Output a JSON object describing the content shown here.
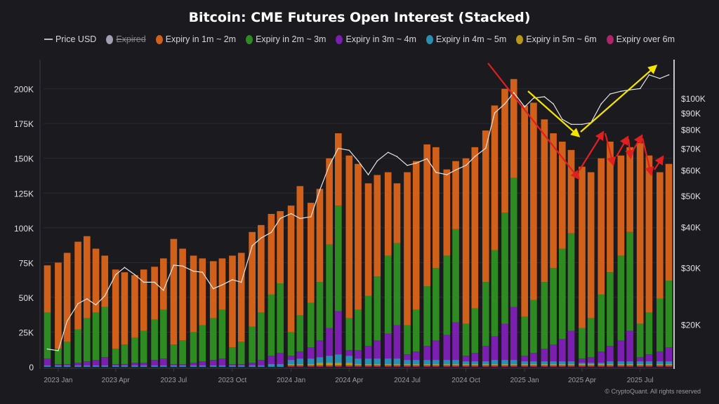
{
  "chart_data": {
    "type": "bar",
    "stacked": true,
    "title": "Bitcoin: CME Futures Open Interest (Stacked)",
    "legend_position": "top",
    "grid": true,
    "x": [
      "2022-12-15",
      "2023-01-01",
      "2023-01-15",
      "2023-02-01",
      "2023-02-15",
      "2023-03-01",
      "2023-03-15",
      "2023-04-01",
      "2023-04-15",
      "2023-05-01",
      "2023-05-15",
      "2023-06-01",
      "2023-06-15",
      "2023-07-01",
      "2023-07-15",
      "2023-08-01",
      "2023-08-15",
      "2023-09-01",
      "2023-09-15",
      "2023-10-01",
      "2023-10-15",
      "2023-11-01",
      "2023-11-15",
      "2023-12-01",
      "2023-12-15",
      "2024-01-01",
      "2024-01-15",
      "2024-02-01",
      "2024-02-15",
      "2024-03-01",
      "2024-03-15",
      "2024-04-01",
      "2024-04-15",
      "2024-05-01",
      "2024-05-15",
      "2024-06-01",
      "2024-06-15",
      "2024-07-01",
      "2024-07-15",
      "2024-08-01",
      "2024-08-15",
      "2024-09-01",
      "2024-09-15",
      "2024-10-01",
      "2024-10-15",
      "2024-11-01",
      "2024-11-15",
      "2024-12-01",
      "2024-12-15",
      "2025-01-01",
      "2025-01-15",
      "2025-02-01",
      "2025-02-15",
      "2025-03-01",
      "2025-03-15",
      "2025-04-01",
      "2025-04-15",
      "2025-05-01",
      "2025-05-15",
      "2025-06-01",
      "2025-06-15",
      "2025-07-01",
      "2025-07-15",
      "2025-08-01",
      "2025-08-15"
    ],
    "x_ticks": [
      "2023 Jan",
      "2023 Apr",
      "2023 Jul",
      "2023 Oct",
      "2024 Jan",
      "2024 Apr",
      "2024 Jul",
      "2024 Oct",
      "2025 Jan",
      "2025 Apr",
      "2025 Jul"
    ],
    "x_tick_dates": [
      "2023-01-01",
      "2023-04-01",
      "2023-07-01",
      "2023-10-01",
      "2024-01-01",
      "2024-04-01",
      "2024-07-01",
      "2024-10-01",
      "2025-01-01",
      "2025-04-01",
      "2025-07-01"
    ],
    "x_range": [
      "2022-12-09",
      "2025-08-21"
    ],
    "y_left": {
      "unit": "K",
      "ylim": [
        0,
        221
      ],
      "ticks": [
        0,
        25,
        50,
        75,
        100,
        125,
        150,
        175,
        200
      ],
      "tick_labels": [
        "0",
        "25K",
        "50K",
        "75K",
        "100K",
        "125K",
        "150K",
        "175K",
        "200K"
      ]
    },
    "y_right": {
      "scale": "log",
      "ylim": [
        14.8,
        131.5
      ],
      "ticks": [
        20,
        30,
        40,
        50,
        60,
        70,
        80,
        90,
        100
      ],
      "tick_labels": [
        "$20K",
        "$30K",
        "$40K",
        "$50K",
        "$60K",
        "$70K",
        "$80K",
        "$90K",
        "$100K"
      ]
    },
    "series": [
      {
        "name": "Expiry over 6m",
        "color": "#b0246a",
        "values": [
          0,
          0,
          0,
          0,
          0,
          0,
          0,
          0,
          0,
          0,
          0,
          0,
          0,
          0,
          0,
          0,
          0,
          0,
          0,
          0,
          0,
          0,
          0,
          0,
          0,
          1,
          1,
          1,
          1,
          1,
          1,
          1,
          1,
          1,
          1,
          1,
          1,
          1,
          1,
          1,
          1,
          1,
          1,
          1,
          1,
          1,
          1,
          1,
          1,
          1,
          1,
          1,
          1,
          1,
          1,
          1,
          1,
          1,
          1,
          1,
          1,
          1,
          1,
          1,
          1
        ]
      },
      {
        "name": "Expiry in 5m ~ 6m",
        "color": "#b8961a",
        "values": [
          0,
          0,
          0,
          0,
          0,
          0,
          0,
          0,
          0,
          0,
          0,
          0,
          0,
          0,
          0,
          0,
          0,
          0,
          0,
          0,
          0,
          0,
          0,
          0,
          0,
          1,
          1,
          1,
          2,
          2,
          2,
          2,
          1,
          1,
          1,
          1,
          1,
          1,
          1,
          1,
          1,
          1,
          1,
          1,
          1,
          1,
          1,
          1,
          1,
          1,
          1,
          1,
          1,
          1,
          1,
          1,
          1,
          1,
          1,
          1,
          1,
          1,
          1,
          1,
          1
        ]
      },
      {
        "name": "Expiry in 4m ~ 5m",
        "color": "#2a8fb0",
        "values": [
          1,
          1,
          1,
          1,
          1,
          1,
          1,
          1,
          1,
          1,
          1,
          1,
          1,
          1,
          1,
          1,
          1,
          1,
          1,
          1,
          1,
          1,
          1,
          2,
          2,
          3,
          4,
          4,
          4,
          5,
          6,
          5,
          4,
          4,
          4,
          4,
          4,
          3,
          3,
          3,
          3,
          3,
          3,
          2,
          2,
          2,
          3,
          3,
          3,
          2,
          2,
          2,
          2,
          2,
          2,
          1,
          1,
          1,
          2,
          2,
          2,
          2,
          2,
          2,
          2
        ]
      },
      {
        "name": "Expiry in 3m ~ 4m",
        "color": "#7a1fb0",
        "values": [
          5,
          1,
          1,
          2,
          3,
          4,
          6,
          1,
          1,
          2,
          2,
          4,
          5,
          1,
          1,
          2,
          3,
          4,
          5,
          1,
          1,
          2,
          4,
          6,
          8,
          3,
          5,
          8,
          12,
          20,
          31,
          4,
          6,
          9,
          13,
          18,
          24,
          4,
          6,
          10,
          14,
          18,
          27,
          4,
          6,
          11,
          17,
          26,
          38,
          4,
          6,
          9,
          12,
          16,
          22,
          3,
          4,
          8,
          11,
          15,
          22,
          3,
          5,
          7,
          10
        ]
      },
      {
        "name": "Expiry in 2m ~ 3m",
        "color": "#2e8b22",
        "values": [
          33,
          11,
          16,
          24,
          31,
          34,
          36,
          11,
          14,
          18,
          23,
          29,
          35,
          14,
          17,
          22,
          26,
          30,
          35,
          12,
          16,
          26,
          34,
          44,
          50,
          17,
          26,
          32,
          42,
          60,
          76,
          23,
          29,
          36,
          46,
          56,
          59,
          21,
          30,
          43,
          52,
          57,
          67,
          23,
          32,
          46,
          62,
          80,
          93,
          28,
          38,
          48,
          55,
          65,
          70,
          22,
          28,
          41,
          53,
          61,
          71,
          24,
          30,
          38,
          48
        ]
      },
      {
        "name": "Expiry in 1m ~ 2m",
        "color": "#d0601a",
        "values": [
          34,
          62,
          64,
          63,
          59,
          46,
          37,
          57,
          52,
          45,
          44,
          38,
          37,
          76,
          66,
          55,
          48,
          41,
          37,
          66,
          64,
          68,
          63,
          58,
          52,
          91,
          93,
          72,
          67,
          62,
          52,
          117,
          105,
          81,
          73,
          60,
          43,
          110,
          107,
          102,
          87,
          62,
          49,
          119,
          116,
          109,
          104,
          89,
          71,
          152,
          142,
          117,
          97,
          77,
          60,
          116,
          105,
          98,
          94,
          72,
          61,
          130,
          113,
          91,
          84
        ]
      }
    ],
    "line_series": {
      "name": "Price USD",
      "color": "#e6e6e6",
      "axis": "right",
      "unit": "K USD",
      "values": [
        16.8,
        16.6,
        20.5,
        23.2,
        24.0,
        23.0,
        24.5,
        28.5,
        30.0,
        28.5,
        27.0,
        27.0,
        25.5,
        30.5,
        30.3,
        29.2,
        29.0,
        25.8,
        26.5,
        27.5,
        27.0,
        35.0,
        37.0,
        38.5,
        42.5,
        44.0,
        42.5,
        43.0,
        52.0,
        62.0,
        70.0,
        69.0,
        64.0,
        58.0,
        64.0,
        68.0,
        66.0,
        62.0,
        63.0,
        65.0,
        59.0,
        58.0,
        60.0,
        62.0,
        66.0,
        70.0,
        90.0,
        96.0,
        104.0,
        94.0,
        100.0,
        101.0,
        96.0,
        86.0,
        83.0,
        83.0,
        84.0,
        96.0,
        103.0,
        105.0,
        106.0,
        107.0,
        118.0,
        115.0,
        118.0
      ]
    },
    "hidden_series": [
      {
        "name": "Expired",
        "color": "#a0a0b0"
      }
    ],
    "annotation_colors": {
      "red_arrows": "#e02020",
      "yellow_arrows": "#f5e400"
    }
  },
  "legend": {
    "items": [
      {
        "label": "Price USD",
        "kind": "line",
        "color": "#bbbbbb"
      },
      {
        "label": "Expired",
        "kind": "dot",
        "color": "#a0a0b0",
        "disabled": true
      },
      {
        "label": "Expiry in 1m ~ 2m",
        "kind": "dot",
        "color": "#d0601a"
      },
      {
        "label": "Expiry in 2m ~ 3m",
        "kind": "dot",
        "color": "#2e8b22"
      },
      {
        "label": "Expiry in 3m ~ 4m",
        "kind": "dot",
        "color": "#7a1fb0"
      },
      {
        "label": "Expiry in 4m ~ 5m",
        "kind": "dot",
        "color": "#2a8fb0"
      },
      {
        "label": "Expiry in 5m ~ 6m",
        "kind": "dot",
        "color": "#b8961a"
      },
      {
        "label": "Expiry over 6m",
        "kind": "dot",
        "color": "#b0246a"
      }
    ]
  },
  "footer": {
    "copyright": "© CryptoQuant. All rights reserved"
  }
}
